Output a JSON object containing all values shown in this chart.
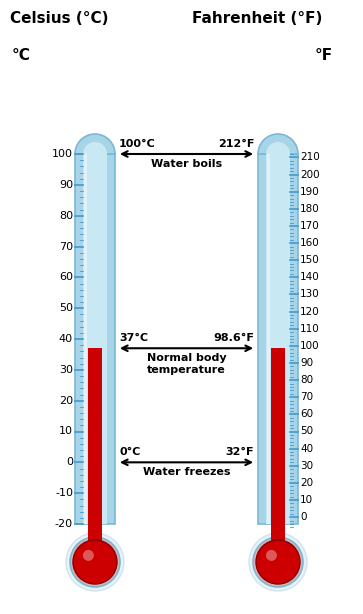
{
  "title_left": "Celsius (°C)",
  "title_right": "Fahrenheit (°F)",
  "label_left": "°C",
  "label_right": "°F",
  "celsius_min": -20,
  "celsius_max": 100,
  "fahrenheit_min": -10,
  "fahrenheit_max": 212,
  "mercury_fill_celsius": 37,
  "annotations": [
    {
      "celsius": 100,
      "label_left": "100°C",
      "label_right": "212°F",
      "text": "Water boils"
    },
    {
      "celsius": 37,
      "label_left": "37°C",
      "label_right": "98.6°F",
      "text": "Normal body\ntemperature"
    },
    {
      "celsius": 0,
      "label_left": "0°C",
      "label_right": "32°F",
      "text": "Water freezes"
    }
  ],
  "tube_color_outer": "#a8d4e8",
  "tube_color_inner": "#c8e8f4",
  "tube_color_light": "#e8f4fb",
  "mercury_color": "#cc0000",
  "bulb_color": "#cc0000",
  "bulb_outer_color": "#ddb0b0",
  "bulb_glow_color": "#b8d8ea",
  "tick_color": "#4499cc",
  "bg_color": "#ffffff",
  "text_color": "#000000",
  "arrow_color": "#000000",
  "tube_edge_color": "#7ab8d8"
}
